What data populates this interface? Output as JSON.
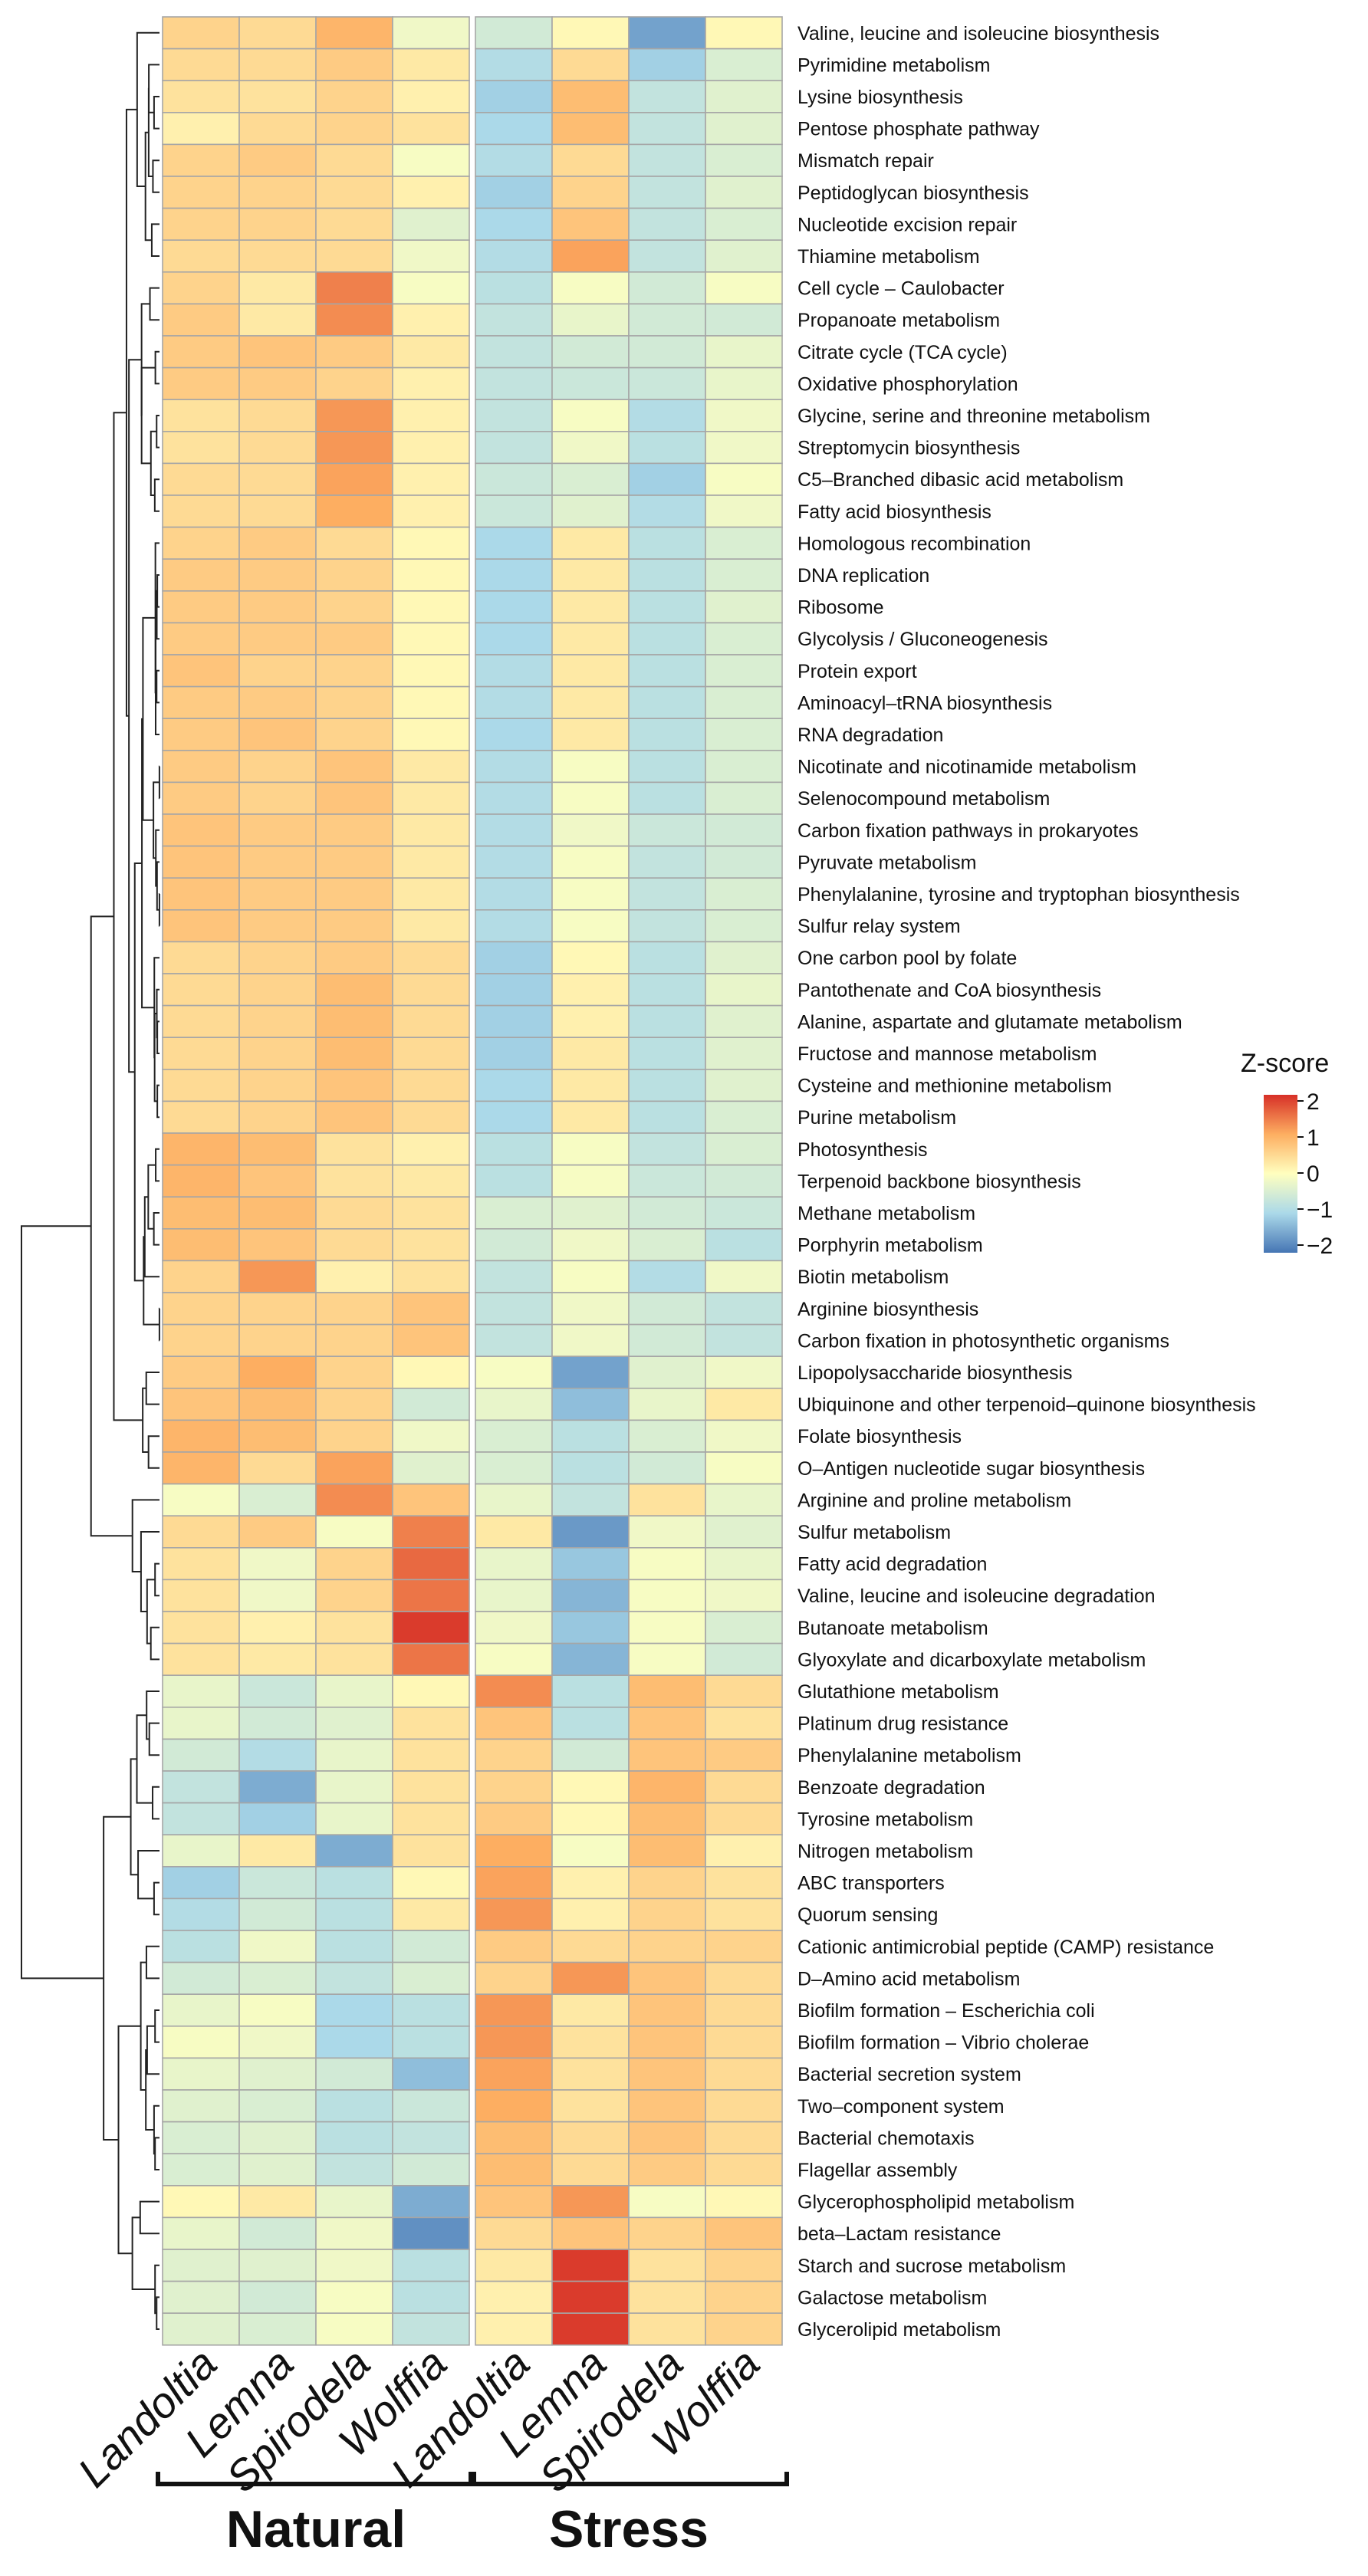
{
  "chart_data": {
    "type": "heatmap",
    "title": "",
    "legend_title": "Z-score",
    "legend_ticks": [
      "2",
      "1",
      "0",
      "−1",
      "−2"
    ],
    "value_range": [
      -2.2,
      2.2
    ],
    "colors": {
      "low": "#4575b4",
      "mid": "#ffffbf",
      "high": "#d73027"
    },
    "legend_placement": "right",
    "groups": [
      {
        "label": "Natural",
        "columns": [
          "Landoltia",
          "Lemna",
          "Spirodela",
          "Wolffia"
        ]
      },
      {
        "label": "Stress",
        "columns": [
          "Landoltia",
          "Lemna",
          "Spirodela",
          "Wolffia"
        ]
      }
    ],
    "rows": [
      "Valine, leucine and isoleucine biosynthesis",
      "Pyrimidine metabolism",
      "Lysine biosynthesis",
      "Pentose phosphate pathway",
      "Mismatch repair",
      "Peptidoglycan biosynthesis",
      "Nucleotide excision repair",
      "Thiamine metabolism",
      "Cell cycle – Caulobacter",
      "Propanoate metabolism",
      "Citrate cycle (TCA cycle)",
      "Oxidative phosphorylation",
      "Glycine, serine and threonine metabolism",
      "Streptomycin biosynthesis",
      "C5–Branched dibasic acid metabolism",
      "Fatty acid biosynthesis",
      "Homologous recombination",
      "DNA replication",
      "Ribosome",
      "Glycolysis / Gluconeogenesis",
      "Protein export",
      "Aminoacyl–tRNA biosynthesis",
      "RNA degradation",
      "Nicotinate and nicotinamide metabolism",
      "Selenocompound metabolism",
      "Carbon fixation pathways in prokaryotes",
      "Pyruvate metabolism",
      "Phenylalanine, tyrosine and tryptophan biosynthesis",
      "Sulfur relay system",
      "One carbon pool by folate",
      "Pantothenate and CoA biosynthesis",
      "Alanine, aspartate and glutamate metabolism",
      "Fructose and mannose metabolism",
      "Cysteine and methionine metabolism",
      "Purine metabolism",
      "Photosynthesis",
      "Terpenoid backbone biosynthesis",
      "Methane metabolism",
      "Porphyrin metabolism",
      "Biotin metabolism",
      "Arginine biosynthesis",
      "Carbon fixation in photosynthetic organisms",
      "Lipopolysaccharide biosynthesis",
      "Ubiquinone and other terpenoid–quinone biosynthesis",
      "Folate biosynthesis",
      "O–Antigen nucleotide sugar biosynthesis",
      "Arginine and proline metabolism",
      "Sulfur metabolism",
      "Fatty acid degradation",
      "Valine, leucine and isoleucine degradation",
      "Butanoate metabolism",
      "Glyoxylate and dicarboxylate metabolism",
      "Glutathione metabolism",
      "Platinum drug resistance",
      "Phenylalanine metabolism",
      "Benzoate degradation",
      "Tyrosine metabolism",
      "Nitrogen metabolism",
      "ABC transporters",
      "Quorum sensing",
      "Cationic antimicrobial peptide (CAMP) resistance",
      "D–Amino acid metabolism",
      "Biofilm formation – Escherichia coli",
      "Biofilm formation – Vibrio cholerae",
      "Bacterial secretion system",
      "Two–component system",
      "Bacterial chemotaxis",
      "Flagellar assembly",
      "Glycerophospholipid metabolism",
      "beta–Lactam resistance",
      "Starch and sucrose metabolism",
      "Galactose metabolism",
      "Glycerolipid metabolism"
    ],
    "values": [
      [
        0.6,
        0.5,
        1.0,
        -0.2,
        -0.6,
        0.1,
        -1.7,
        0.1
      ],
      [
        0.5,
        0.5,
        0.7,
        0.3,
        -1.0,
        0.5,
        -1.2,
        -0.5
      ],
      [
        0.4,
        0.4,
        0.6,
        0.2,
        -1.2,
        0.9,
        -0.8,
        -0.4
      ],
      [
        0.2,
        0.5,
        0.6,
        0.4,
        -1.1,
        0.9,
        -0.8,
        -0.4
      ],
      [
        0.6,
        0.7,
        0.5,
        -0.1,
        -1.0,
        0.5,
        -0.8,
        -0.5
      ],
      [
        0.6,
        0.6,
        0.5,
        0.2,
        -1.2,
        0.6,
        -0.8,
        -0.4
      ],
      [
        0.6,
        0.6,
        0.5,
        -0.4,
        -1.1,
        0.8,
        -0.8,
        -0.5
      ],
      [
        0.5,
        0.5,
        0.5,
        -0.2,
        -1.0,
        1.2,
        -0.8,
        -0.4
      ],
      [
        0.6,
        0.3,
        1.5,
        -0.1,
        -0.9,
        -0.1,
        -0.6,
        -0.1
      ],
      [
        0.7,
        0.3,
        1.4,
        0.2,
        -0.8,
        -0.3,
        -0.6,
        -0.6
      ],
      [
        0.7,
        0.8,
        0.7,
        0.3,
        -0.8,
        -0.6,
        -0.6,
        -0.3
      ],
      [
        0.7,
        0.7,
        0.6,
        0.2,
        -0.8,
        -0.7,
        -0.7,
        -0.3
      ],
      [
        0.4,
        0.5,
        1.3,
        0.2,
        -0.8,
        -0.1,
        -1.0,
        -0.2
      ],
      [
        0.4,
        0.5,
        1.3,
        0.2,
        -0.8,
        -0.2,
        -0.9,
        -0.2
      ],
      [
        0.5,
        0.5,
        1.2,
        0.2,
        -0.7,
        -0.5,
        -1.2,
        -0.1
      ],
      [
        0.5,
        0.5,
        1.1,
        0.2,
        -0.7,
        -0.4,
        -1.0,
        -0.2
      ],
      [
        0.6,
        0.7,
        0.5,
        0.1,
        -1.1,
        0.3,
        -0.9,
        -0.5
      ],
      [
        0.7,
        0.7,
        0.6,
        0.1,
        -1.1,
        0.3,
        -0.9,
        -0.5
      ],
      [
        0.7,
        0.7,
        0.6,
        0.1,
        -1.1,
        0.3,
        -0.9,
        -0.4
      ],
      [
        0.7,
        0.7,
        0.7,
        0.1,
        -1.1,
        0.3,
        -0.9,
        -0.5
      ],
      [
        0.8,
        0.6,
        0.6,
        0.1,
        -1.0,
        0.3,
        -0.9,
        -0.5
      ],
      [
        0.7,
        0.7,
        0.6,
        0.1,
        -1.0,
        0.3,
        -0.9,
        -0.5
      ],
      [
        0.7,
        0.8,
        0.6,
        0.1,
        -1.1,
        0.3,
        -0.9,
        -0.5
      ],
      [
        0.7,
        0.6,
        0.8,
        0.3,
        -1.0,
        -0.1,
        -0.9,
        -0.5
      ],
      [
        0.7,
        0.6,
        0.8,
        0.3,
        -1.0,
        -0.1,
        -0.9,
        -0.5
      ],
      [
        0.8,
        0.7,
        0.7,
        0.3,
        -1.0,
        -0.2,
        -0.7,
        -0.6
      ],
      [
        0.8,
        0.7,
        0.7,
        0.3,
        -1.0,
        -0.1,
        -0.8,
        -0.6
      ],
      [
        0.8,
        0.7,
        0.7,
        0.3,
        -1.0,
        -0.1,
        -0.8,
        -0.5
      ],
      [
        0.8,
        0.7,
        0.7,
        0.3,
        -1.0,
        -0.1,
        -0.8,
        -0.5
      ],
      [
        0.5,
        0.6,
        0.7,
        0.5,
        -1.2,
        0.1,
        -0.9,
        -0.4
      ],
      [
        0.5,
        0.6,
        0.9,
        0.5,
        -1.2,
        0.2,
        -0.9,
        -0.3
      ],
      [
        0.5,
        0.6,
        0.9,
        0.5,
        -1.2,
        0.2,
        -0.9,
        -0.4
      ],
      [
        0.5,
        0.6,
        0.9,
        0.5,
        -1.2,
        0.3,
        -0.9,
        -0.4
      ],
      [
        0.5,
        0.6,
        0.8,
        0.5,
        -1.1,
        0.3,
        -0.9,
        -0.4
      ],
      [
        0.5,
        0.6,
        0.8,
        0.5,
        -1.1,
        0.3,
        -0.9,
        -0.5
      ],
      [
        1.0,
        0.9,
        0.4,
        0.2,
        -0.9,
        -0.1,
        -0.8,
        -0.5
      ],
      [
        1.0,
        0.8,
        0.4,
        0.3,
        -0.9,
        -0.1,
        -0.7,
        -0.6
      ],
      [
        0.9,
        0.9,
        0.5,
        0.4,
        -0.5,
        -0.4,
        -0.6,
        -0.7
      ],
      [
        0.9,
        0.8,
        0.5,
        0.4,
        -0.6,
        -0.2,
        -0.5,
        -0.9
      ],
      [
        0.6,
        1.3,
        0.2,
        0.4,
        -0.8,
        -0.1,
        -1.0,
        -0.2
      ],
      [
        0.6,
        0.6,
        0.6,
        0.8,
        -0.8,
        -0.2,
        -0.6,
        -0.8
      ],
      [
        0.6,
        0.6,
        0.6,
        0.8,
        -0.8,
        -0.2,
        -0.6,
        -0.8
      ],
      [
        0.7,
        1.1,
        0.6,
        0.1,
        -0.1,
        -1.7,
        -0.4,
        -0.2
      ],
      [
        0.8,
        0.9,
        0.6,
        -0.6,
        -0.3,
        -1.4,
        -0.3,
        0.3
      ],
      [
        1.0,
        0.9,
        0.6,
        -0.2,
        -0.5,
        -0.9,
        -0.5,
        -0.2
      ],
      [
        1.0,
        0.5,
        1.2,
        -0.4,
        -0.5,
        -0.9,
        -0.6,
        -0.1
      ],
      [
        -0.1,
        -0.5,
        1.4,
        0.8,
        -0.3,
        -0.8,
        0.4,
        -0.3
      ],
      [
        0.5,
        0.7,
        -0.1,
        1.5,
        0.3,
        -1.8,
        -0.2,
        -0.4
      ],
      [
        0.4,
        -0.2,
        0.6,
        1.7,
        -0.3,
        -1.3,
        -0.1,
        -0.3
      ],
      [
        0.4,
        -0.2,
        0.6,
        1.6,
        -0.3,
        -1.5,
        -0.1,
        -0.2
      ],
      [
        0.4,
        0.2,
        0.4,
        2.1,
        -0.2,
        -1.3,
        -0.1,
        -0.5
      ],
      [
        0.4,
        0.3,
        0.4,
        1.6,
        -0.1,
        -1.5,
        -0.1,
        -0.6
      ],
      [
        -0.3,
        -0.7,
        -0.3,
        0.1,
        1.4,
        -0.9,
        0.9,
        0.5
      ],
      [
        -0.3,
        -0.6,
        -0.4,
        0.4,
        0.8,
        -0.9,
        0.8,
        0.4
      ],
      [
        -0.6,
        -1.0,
        -0.3,
        0.4,
        0.6,
        -0.6,
        0.8,
        0.7
      ],
      [
        -0.8,
        -1.6,
        -0.3,
        0.4,
        0.6,
        0.1,
        1.0,
        0.5
      ],
      [
        -0.8,
        -1.2,
        -0.3,
        0.4,
        0.7,
        0.1,
        0.9,
        0.5
      ],
      [
        -0.3,
        0.3,
        -1.6,
        0.4,
        1.1,
        -0.1,
        0.9,
        0.2
      ],
      [
        -1.2,
        -0.7,
        -0.9,
        0.1,
        1.2,
        0.2,
        0.6,
        0.4
      ],
      [
        -1.0,
        -0.6,
        -0.9,
        0.3,
        1.3,
        0.2,
        0.6,
        0.4
      ],
      [
        -0.9,
        -0.2,
        -0.9,
        -0.6,
        0.7,
        0.5,
        0.6,
        0.6
      ],
      [
        -0.6,
        -0.5,
        -0.8,
        -0.5,
        0.6,
        1.3,
        0.8,
        0.5
      ],
      [
        -0.3,
        -0.1,
        -1.1,
        -0.9,
        1.3,
        0.3,
        0.8,
        0.5
      ],
      [
        -0.1,
        -0.2,
        -1.1,
        -0.9,
        1.3,
        0.4,
        0.8,
        0.5
      ],
      [
        -0.3,
        -0.4,
        -0.6,
        -1.4,
        1.2,
        0.4,
        0.8,
        0.5
      ],
      [
        -0.4,
        -0.5,
        -0.9,
        -0.7,
        1.1,
        0.4,
        0.8,
        0.5
      ],
      [
        -0.5,
        -0.4,
        -0.9,
        -0.8,
        0.9,
        0.5,
        0.8,
        0.5
      ],
      [
        -0.5,
        -0.4,
        -0.8,
        -0.6,
        0.9,
        0.5,
        0.7,
        0.5
      ],
      [
        0.1,
        0.3,
        -0.3,
        -1.6,
        0.8,
        1.3,
        -0.1,
        0.1
      ],
      [
        -0.3,
        -0.6,
        -0.2,
        -1.9,
        0.5,
        0.8,
        0.6,
        0.8
      ],
      [
        -0.4,
        -0.4,
        -0.2,
        -0.9,
        0.3,
        2.1,
        0.4,
        0.6
      ],
      [
        -0.4,
        -0.6,
        -0.1,
        -0.9,
        0.2,
        2.1,
        0.4,
        0.6
      ],
      [
        -0.4,
        -0.5,
        -0.1,
        -0.8,
        0.2,
        2.1,
        0.4,
        0.6
      ]
    ]
  }
}
